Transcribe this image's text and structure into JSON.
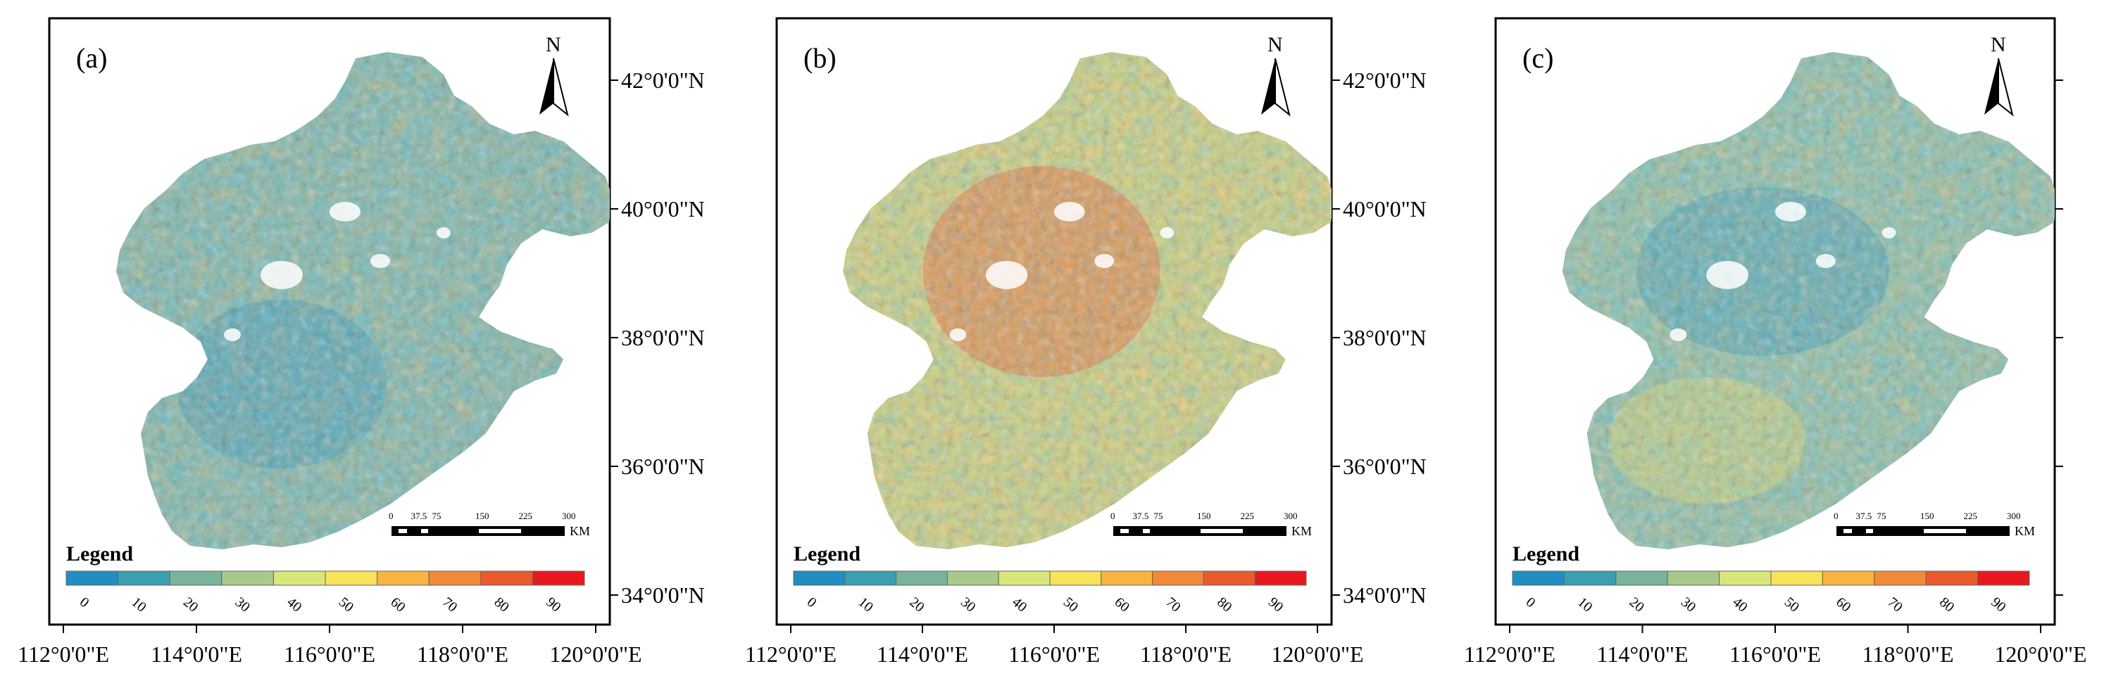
{
  "panels": [
    {
      "label": "(a)",
      "pattern": "a",
      "has_lat_labels": true,
      "legend_title": "Legend",
      "north": "N",
      "scale_labels": [
        "0",
        "37.5",
        "75",
        "150",
        "225",
        "300"
      ],
      "scale_unit": "KM"
    },
    {
      "label": "(b)",
      "pattern": "b",
      "has_lat_labels": true,
      "legend_title": "Legend",
      "north": "N",
      "scale_labels": [
        "0",
        "37.5",
        "75",
        "150",
        "225",
        "300"
      ],
      "scale_unit": "KM"
    },
    {
      "label": "(c)",
      "pattern": "c",
      "has_lat_labels": false,
      "legend_title": "Legend",
      "north": "N",
      "scale_labels": [
        "0",
        "37.5",
        "75",
        "150",
        "225",
        "300"
      ],
      "scale_unit": "KM"
    }
  ],
  "legend_classes": [
    {
      "value": "0",
      "color": "#1f8fc1"
    },
    {
      "value": "10",
      "color": "#3aa0b0"
    },
    {
      "value": "20",
      "color": "#79b49a"
    },
    {
      "value": "30",
      "color": "#a9c98a"
    },
    {
      "value": "40",
      "color": "#dbe67a"
    },
    {
      "value": "50",
      "color": "#f7e25a"
    },
    {
      "value": "60",
      "color": "#f8b440"
    },
    {
      "value": "70",
      "color": "#f08a36"
    },
    {
      "value": "80",
      "color": "#eb5a2c"
    },
    {
      "value": "90",
      "color": "#e8191e"
    }
  ],
  "lat_labels": [
    "42°0'0\"N",
    "40°0'0\"N",
    "38°0'0\"N",
    "36°0'0\"N",
    "34°0'0\"N"
  ],
  "lon_labels": [
    "112°0'0\"E",
    "114°0'0\"E",
    "116°0'0\"E",
    "118°0'0\"E",
    "120°0'0\"E"
  ]
}
